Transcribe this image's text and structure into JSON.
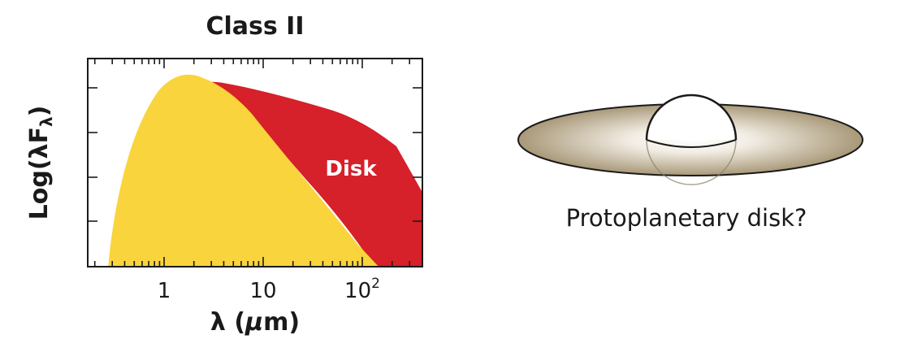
{
  "title": "Class II",
  "axes": {
    "xlabel_main": "λ (",
    "xlabel_italic": "μ",
    "xlabel_end": "m)",
    "ylabel_main": "Log(λF",
    "ylabel_sub": "λ",
    "ylabel_end": ")",
    "xticks": [
      {
        "value": 1,
        "label": "1",
        "exp": ""
      },
      {
        "value": 10,
        "label": "10",
        "exp": ""
      },
      {
        "value": 100,
        "label": "10",
        "exp": "2"
      }
    ]
  },
  "regions": {
    "disk_label": "Disk",
    "star_color": "#f9d43c",
    "disk_color": "#d6202a"
  },
  "illustration": {
    "caption": "Protoplanetary disk?",
    "disk_color": "#a89878",
    "star_color": "#ffffff"
  }
}
